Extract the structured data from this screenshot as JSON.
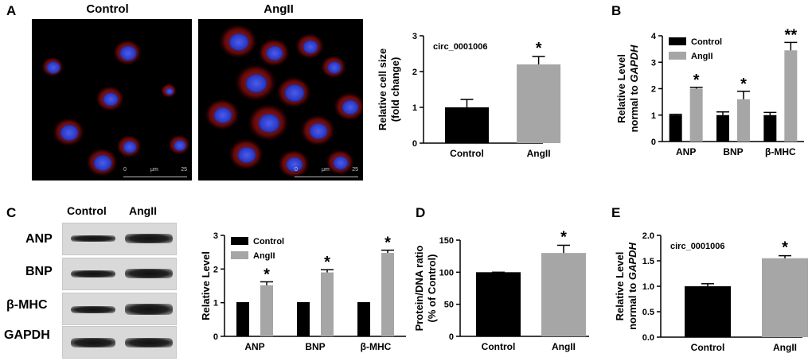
{
  "panels": {
    "A": {
      "letter": "A",
      "image_labels": [
        "Control",
        "AngII"
      ],
      "scalebar": {
        "start": "0",
        "unit": "μm",
        "end": "25"
      }
    },
    "B": {
      "letter": "B"
    },
    "C": {
      "letter": "C",
      "blot_lanes": [
        "Control",
        "AngII"
      ],
      "blot_rows": [
        "ANP",
        "BNP",
        "β-MHC",
        "GAPDH"
      ]
    },
    "D": {
      "letter": "D"
    },
    "E": {
      "letter": "E"
    }
  },
  "colors": {
    "control": "#000000",
    "angii": "#a6a6a6",
    "nucleus": "#3040d0",
    "cytoplasm": "#d01818"
  },
  "chart_data": [
    {
      "id": "cell-size",
      "type": "bar",
      "title": "circ_0001006",
      "xlabel": "",
      "ylabel": "Relative cell size\n(fold change)",
      "ylim": [
        0,
        3
      ],
      "yticks": [
        0,
        1,
        2,
        3
      ],
      "categories": [
        "Control",
        "AngII"
      ],
      "values": [
        1.0,
        2.2
      ],
      "errors": [
        0.22,
        0.22
      ],
      "annotations": [
        "",
        "*"
      ]
    },
    {
      "id": "mrna-markers",
      "type": "bar",
      "title": "",
      "xlabel": "",
      "ylabel": "Relative Level\nnormal to GAPDH",
      "ylabel_italic_word": "GAPDH",
      "ylim": [
        0,
        4
      ],
      "yticks": [
        0,
        1,
        2,
        3,
        4
      ],
      "categories": [
        "ANP",
        "BNP",
        "β-MHC"
      ],
      "series": [
        {
          "name": "Control",
          "values": [
            1.0,
            1.0,
            1.0
          ],
          "errors": [
            0.03,
            0.12,
            0.1
          ]
        },
        {
          "name": "AngII",
          "values": [
            2.0,
            1.6,
            3.45
          ],
          "errors": [
            0.05,
            0.3,
            0.3
          ]
        }
      ],
      "annotations": [
        "*",
        "*",
        "**"
      ],
      "legend": "top-left"
    },
    {
      "id": "protein-markers",
      "type": "bar",
      "title": "",
      "xlabel": "",
      "ylabel": "Relative Level",
      "ylim": [
        0,
        3
      ],
      "yticks": [
        0,
        1,
        2,
        3
      ],
      "categories": [
        "ANP",
        "BNP",
        "β-MHC"
      ],
      "series": [
        {
          "name": "Control",
          "values": [
            1.0,
            1.0,
            1.0
          ],
          "errors": [
            0,
            0,
            0
          ]
        },
        {
          "name": "AngII",
          "values": [
            1.52,
            1.9,
            2.48
          ],
          "errors": [
            0.1,
            0.08,
            0.08
          ]
        }
      ],
      "annotations": [
        "*",
        "*",
        "*"
      ],
      "legend": "top-left"
    },
    {
      "id": "protein-dna",
      "type": "bar",
      "title": "",
      "xlabel": "",
      "ylabel": "Protein/DNA ratio\n(% of Control)",
      "ylim": [
        0,
        150
      ],
      "yticks": [
        0,
        50,
        100,
        150
      ],
      "categories": [
        "Control",
        "AngII"
      ],
      "values": [
        100,
        130
      ],
      "errors": [
        0,
        12
      ],
      "annotations": [
        "",
        "*"
      ]
    },
    {
      "id": "circ-level",
      "type": "bar",
      "title": "circ_0001006",
      "xlabel": "",
      "ylabel": "Relative Level\nnormal to GAPDH",
      "ylabel_italic_word": "GAPDH",
      "ylim": [
        0,
        2.0
      ],
      "yticks": [
        0.0,
        0.5,
        1.0,
        1.5,
        2.0
      ],
      "ytick_format": "1dp",
      "categories": [
        "Control",
        "AngII"
      ],
      "values": [
        1.0,
        1.55
      ],
      "errors": [
        0.05,
        0.05
      ],
      "annotations": [
        "",
        "*"
      ]
    }
  ]
}
